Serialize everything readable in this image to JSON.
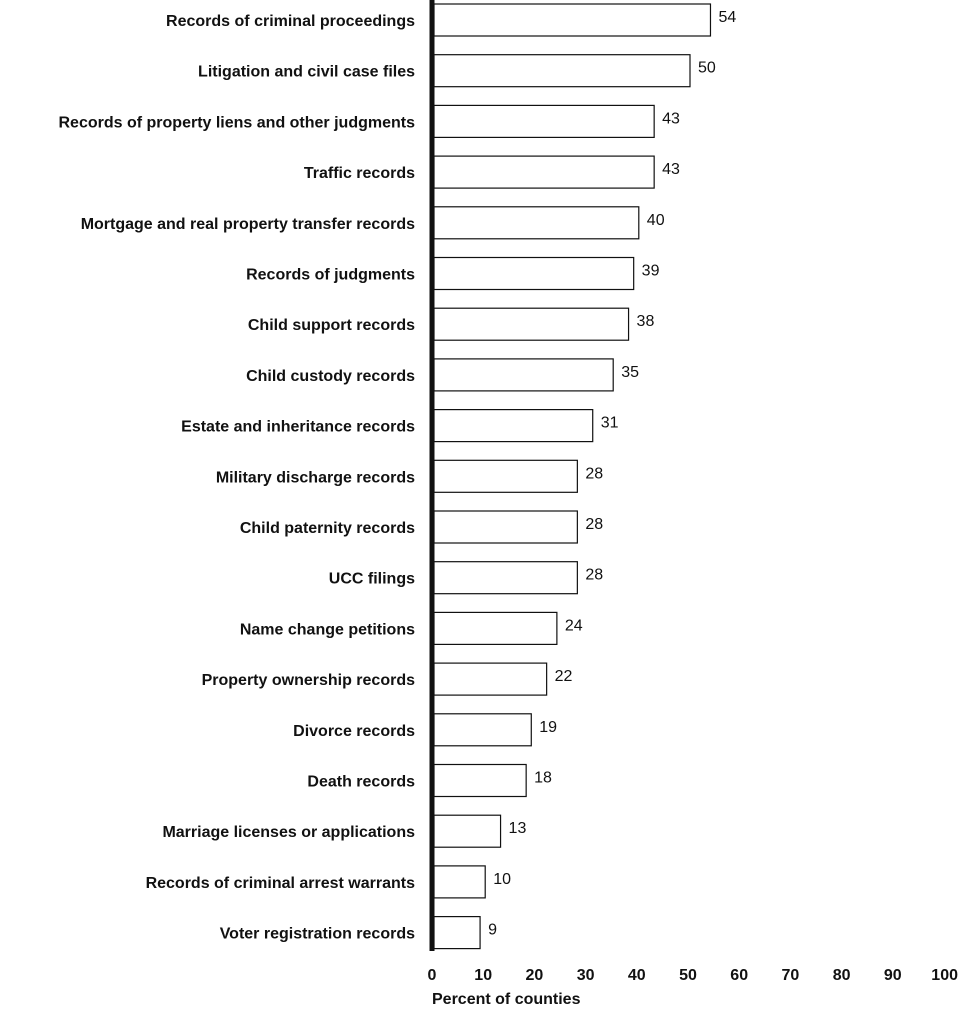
{
  "chart_data": {
    "type": "bar",
    "orientation": "horizontal",
    "title": "",
    "xlabel": "Percent of counties",
    "ylabel": "",
    "xlim": [
      0,
      100
    ],
    "xticks": [
      0,
      10,
      20,
      30,
      40,
      50,
      60,
      70,
      80,
      90,
      100
    ],
    "grid": false,
    "categories": [
      "Records of criminal proceedings",
      "Litigation and civil case files",
      "Records of property liens and other judgments",
      "Traffic records",
      "Mortgage and real property transfer records",
      "Records of judgments",
      "Child support records",
      "Child custody records",
      "Estate and inheritance records",
      "Military discharge records",
      "Child paternity records",
      "UCC filings",
      "Name change petitions",
      "Property ownership records",
      "Divorce records",
      "Death records",
      "Marriage licenses or applications",
      "Records of criminal arrest warrants",
      "Voter registration records"
    ],
    "values": [
      54,
      50,
      43,
      43,
      40,
      39,
      38,
      35,
      31,
      28,
      28,
      28,
      24,
      22,
      19,
      18,
      13,
      10,
      9
    ],
    "colors": {
      "bar_fill": "#ffffff",
      "bar_stroke": "#111111",
      "axis": "#111111"
    }
  }
}
